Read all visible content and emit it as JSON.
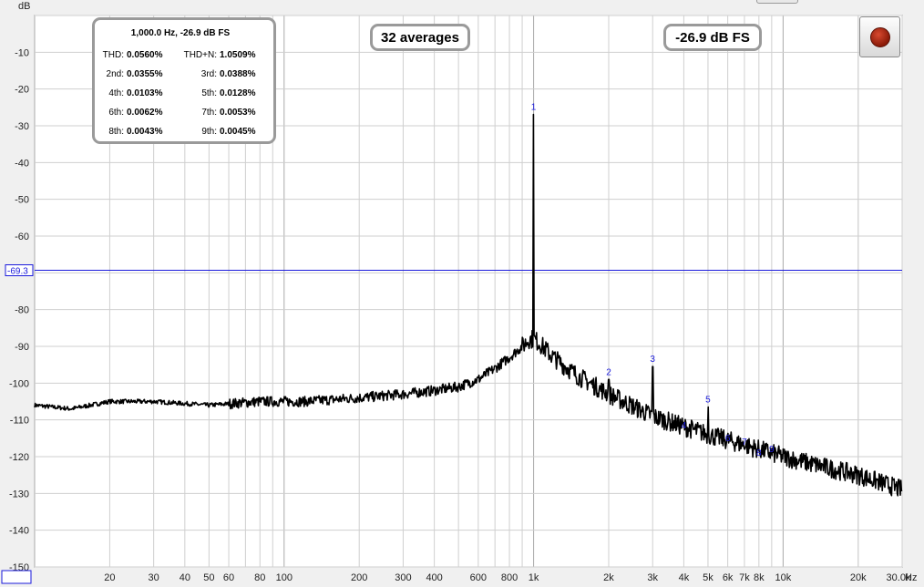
{
  "chart_data": {
    "type": "line",
    "title": "",
    "ylabel": "dB",
    "xunit": "Hz",
    "xscale": "log",
    "xlim": [
      10,
      30000
    ],
    "ylim": [
      -150,
      0
    ],
    "x_tick_labels": [
      "10.00",
      "20",
      "30",
      "40",
      "50",
      "60",
      "80",
      "100",
      "200",
      "300",
      "400",
      "600",
      "800",
      "1k",
      "2k",
      "3k",
      "4k",
      "5k",
      "6k",
      "7k",
      "8k",
      "10k",
      "20k",
      "30.0k"
    ],
    "y_tick_labels": [
      "-10",
      "-20",
      "-30",
      "-40",
      "-50",
      "-60",
      "-80",
      "-90",
      "-100",
      "-110",
      "-120",
      "-130",
      "-140",
      "-150"
    ],
    "cursor_label": "-69.3",
    "cursor_db": -69.3,
    "spectrum_envelope": {
      "freq_hz": [
        10,
        14,
        20,
        30,
        50,
        80,
        120,
        200,
        300,
        400,
        500,
        600,
        700,
        800,
        900,
        960,
        1000,
        1050,
        1200,
        1500,
        2000,
        3000,
        5000,
        8000,
        10000,
        15000,
        20000,
        30000
      ],
      "db": [
        -106,
        -107,
        -105,
        -105,
        -106,
        -105,
        -105,
        -104,
        -103,
        -102,
        -101,
        -99,
        -96,
        -93,
        -90,
        -88,
        -88,
        -89,
        -93,
        -98,
        -103,
        -109,
        -114,
        -118,
        -120,
        -123,
        -125,
        -129
      ]
    },
    "peaks": [
      {
        "label": "1",
        "freq_hz": 1000,
        "db": -26.9
      },
      {
        "label": "2",
        "freq_hz": 2000,
        "db": -99
      },
      {
        "label": "3",
        "freq_hz": 3000,
        "db": -95.5
      },
      {
        "label": "4",
        "freq_hz": 4000,
        "db": -113.5
      },
      {
        "label": "5",
        "freq_hz": 5000,
        "db": -106.5
      },
      {
        "label": "6",
        "freq_hz": 6000,
        "db": -117
      },
      {
        "label": "7",
        "freq_hz": 7000,
        "db": -118
      },
      {
        "label": "8",
        "freq_hz": 8000,
        "db": -121
      },
      {
        "label": "9",
        "freq_hz": 9000,
        "db": -120
      }
    ],
    "grid": true,
    "series_color": "#000000",
    "cursor_color": "#1a1adb"
  },
  "readouts": {
    "averages": "32 averages",
    "level": "-26.9 dB FS"
  },
  "thd_panel": {
    "title": "1,000.0 Hz, -26.9 dB FS",
    "rows": [
      {
        "l1": "THD:",
        "v1": "0.0560%",
        "l2": "THD+N:",
        "v2": "1.0509%"
      },
      {
        "l1": "2nd:",
        "v1": "0.0355%",
        "l2": "3rd:",
        "v2": "0.0388%"
      },
      {
        "l1": "4th:",
        "v1": "0.0103%",
        "l2": "5th:",
        "v2": "0.0128%"
      },
      {
        "l1": "6th:",
        "v1": "0.0062%",
        "l2": "7th:",
        "v2": "0.0053%"
      },
      {
        "l1": "8th:",
        "v1": "0.0043%",
        "l2": "9th:",
        "v2": "0.0045%"
      }
    ]
  },
  "controls": {
    "record_icon": "record-icon"
  }
}
